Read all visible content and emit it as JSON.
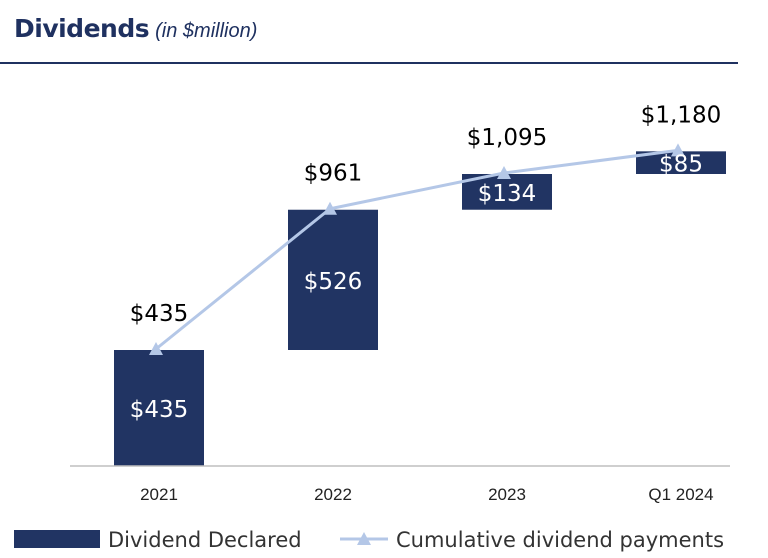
{
  "chart_data": {
    "type": "bar",
    "title": "Dividends",
    "subtitle": "(in $million)",
    "categories": [
      "2021",
      "2022",
      "2023",
      "Q1 2024"
    ],
    "series": [
      {
        "name": "Dividend Declared",
        "kind": "waterfall-bar",
        "values": [
          435,
          526,
          134,
          85
        ],
        "labels": [
          "$435",
          "$526",
          "$134",
          "$85"
        ],
        "color": "#213463"
      },
      {
        "name": "Cumulative dividend payments",
        "kind": "line",
        "marker": "triangle",
        "values": [
          435,
          961,
          1095,
          1180
        ],
        "labels": [
          "$435",
          "$961",
          "$1,095",
          "$1,180"
        ],
        "color": "#b4c7e7"
      }
    ],
    "ylim": [
      0,
      1400
    ],
    "grid": false,
    "legend": "bottom",
    "xlabel": "",
    "ylabel": ""
  }
}
